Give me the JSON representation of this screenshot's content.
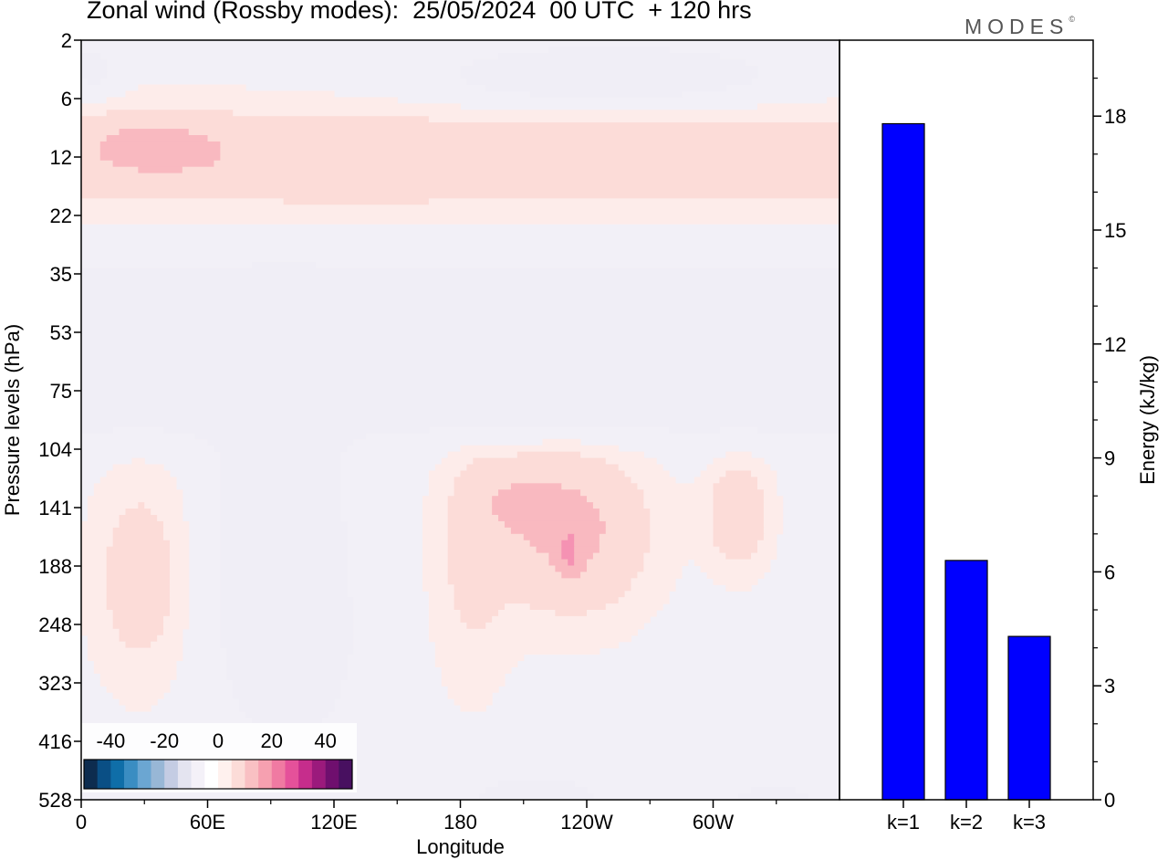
{
  "header": {
    "title": "Zonal wind (Rossby modes):  25/05/2024  00 UTC  + 120 hrs",
    "logo": "MODES",
    "logo_mark": "©"
  },
  "chart_data": [
    {
      "type": "heatmap",
      "title": "Zonal wind (Rossby modes):  25/05/2024  00 UTC  + 120 hrs",
      "xlabel": "Longitude",
      "ylabel": "Pressure levels (hPa)",
      "x_tick_labels": [
        "0",
        "60E",
        "120E",
        "180",
        "120W",
        "60W"
      ],
      "x_ticks_deg": [
        0,
        60,
        120,
        180,
        240,
        300
      ],
      "xlim": [
        0,
        360
      ],
      "y_tick_labels": [
        "2",
        "6",
        "12",
        "22",
        "35",
        "53",
        "75",
        "104",
        "141",
        "188",
        "248",
        "323",
        "416",
        "528"
      ],
      "y_order": "top-to-bottom",
      "colorbar": {
        "tick_labels": [
          "-40",
          "-20",
          "0",
          "20",
          "40"
        ],
        "ticks": [
          -40,
          -20,
          0,
          20,
          40
        ],
        "range": [
          -50,
          50
        ],
        "step": 5,
        "colors": [
          "#0d2c4f",
          "#0a4f85",
          "#0f6ea8",
          "#3a8dc2",
          "#6ba6d2",
          "#98b7d6",
          "#c4cce3",
          "#e4e4f0",
          "#f4f1f8",
          "#ffffff",
          "#fff1ee",
          "#fcdcd8",
          "#f9c0c3",
          "#f6a0b0",
          "#f07aa2",
          "#e5519a",
          "#c62d8c",
          "#9b1a7c",
          "#6f0f6e",
          "#481060"
        ]
      },
      "contour_levels_ms": [
        {
          "value": -15,
          "color": "#96b3d4"
        },
        {
          "value": -10,
          "color": "#c0c9e1"
        },
        {
          "value": -5,
          "color": "#e1e2ef"
        },
        {
          "value": -2.5,
          "color": "#f0eef6"
        },
        {
          "value": 2.5,
          "color": "#fdecea"
        },
        {
          "value": 5,
          "color": "#fcdcd8"
        },
        {
          "value": 10,
          "color": "#f9b9c0"
        },
        {
          "value": 15,
          "color": "#f592b3"
        }
      ]
    },
    {
      "type": "bar",
      "categories": [
        "k=1",
        "k=2",
        "k=3"
      ],
      "values": [
        17.8,
        6.3,
        4.3
      ],
      "ylabel": "Energy (kJ/kg)",
      "y_ticks": [
        0,
        3,
        6,
        9,
        12,
        15,
        18
      ],
      "ylim": [
        0,
        20
      ],
      "bar_color": "#0000ff"
    }
  ]
}
